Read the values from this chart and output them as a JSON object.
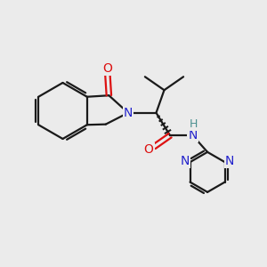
{
  "background_color": "#ebebeb",
  "bond_color": "#1a1a1a",
  "nitrogen_color": "#2222cc",
  "oxygen_color": "#dd1111",
  "hydrogen_color": "#4a9090",
  "line_width": 1.6,
  "figsize": [
    3.0,
    3.0
  ],
  "dpi": 100,
  "xlim": [
    0,
    10
  ],
  "ylim": [
    0,
    10
  ]
}
